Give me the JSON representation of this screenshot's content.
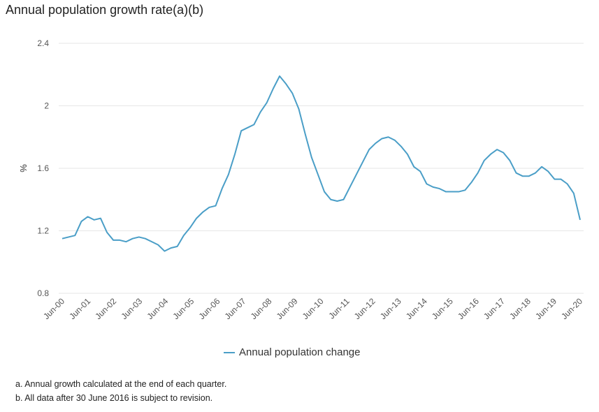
{
  "colors": {
    "series": "#4a9ec7",
    "grid": "#e6e6e6",
    "text": "#555555"
  },
  "chart_data": {
    "type": "line",
    "title": "Annual population growth rate(a)(b)",
    "xlabel": "",
    "ylabel": "%",
    "ylim": [
      0.8,
      2.4
    ],
    "yticks": [
      "0.8",
      "1.2",
      "1.6",
      "2",
      "2.4"
    ],
    "ytick_values": [
      0.8,
      1.2,
      1.6,
      2.0,
      2.4
    ],
    "grid": true,
    "legend_position": "bottom-center",
    "x_tick_labels": [
      "Jun-00",
      "Jun-01",
      "Jun-02",
      "Jun-03",
      "Jun-04",
      "Jun-05",
      "Jun-06",
      "Jun-07",
      "Jun-08",
      "Jun-09",
      "Jun-10",
      "Jun-11",
      "Jun-12",
      "Jun-13",
      "Jun-14",
      "Jun-15",
      "Jun-16",
      "Jun-17",
      "Jun-18",
      "Jun-19",
      "Jun-20"
    ],
    "series": [
      {
        "name": "Annual population change",
        "values": [
          1.15,
          1.16,
          1.17,
          1.26,
          1.29,
          1.27,
          1.28,
          1.19,
          1.14,
          1.14,
          1.13,
          1.15,
          1.16,
          1.15,
          1.13,
          1.11,
          1.07,
          1.09,
          1.1,
          1.17,
          1.22,
          1.28,
          1.32,
          1.35,
          1.36,
          1.47,
          1.56,
          1.69,
          1.84,
          1.86,
          1.88,
          1.96,
          2.02,
          2.11,
          2.19,
          2.14,
          2.08,
          1.98,
          1.82,
          1.67,
          1.56,
          1.45,
          1.4,
          1.39,
          1.4,
          1.48,
          1.56,
          1.64,
          1.72,
          1.76,
          1.79,
          1.8,
          1.78,
          1.74,
          1.69,
          1.61,
          1.58,
          1.5,
          1.48,
          1.47,
          1.45,
          1.45,
          1.45,
          1.46,
          1.51,
          1.57,
          1.65,
          1.69,
          1.72,
          1.7,
          1.65,
          1.57,
          1.55,
          1.55,
          1.57,
          1.61,
          1.58,
          1.53,
          1.53,
          1.5,
          1.44,
          1.27
        ]
      }
    ]
  },
  "legend": {
    "label": "Annual population change"
  },
  "notes": [
    "a. Annual growth calculated at the end of each quarter.",
    "b. All data after 30 June 2016 is subject to revision."
  ]
}
